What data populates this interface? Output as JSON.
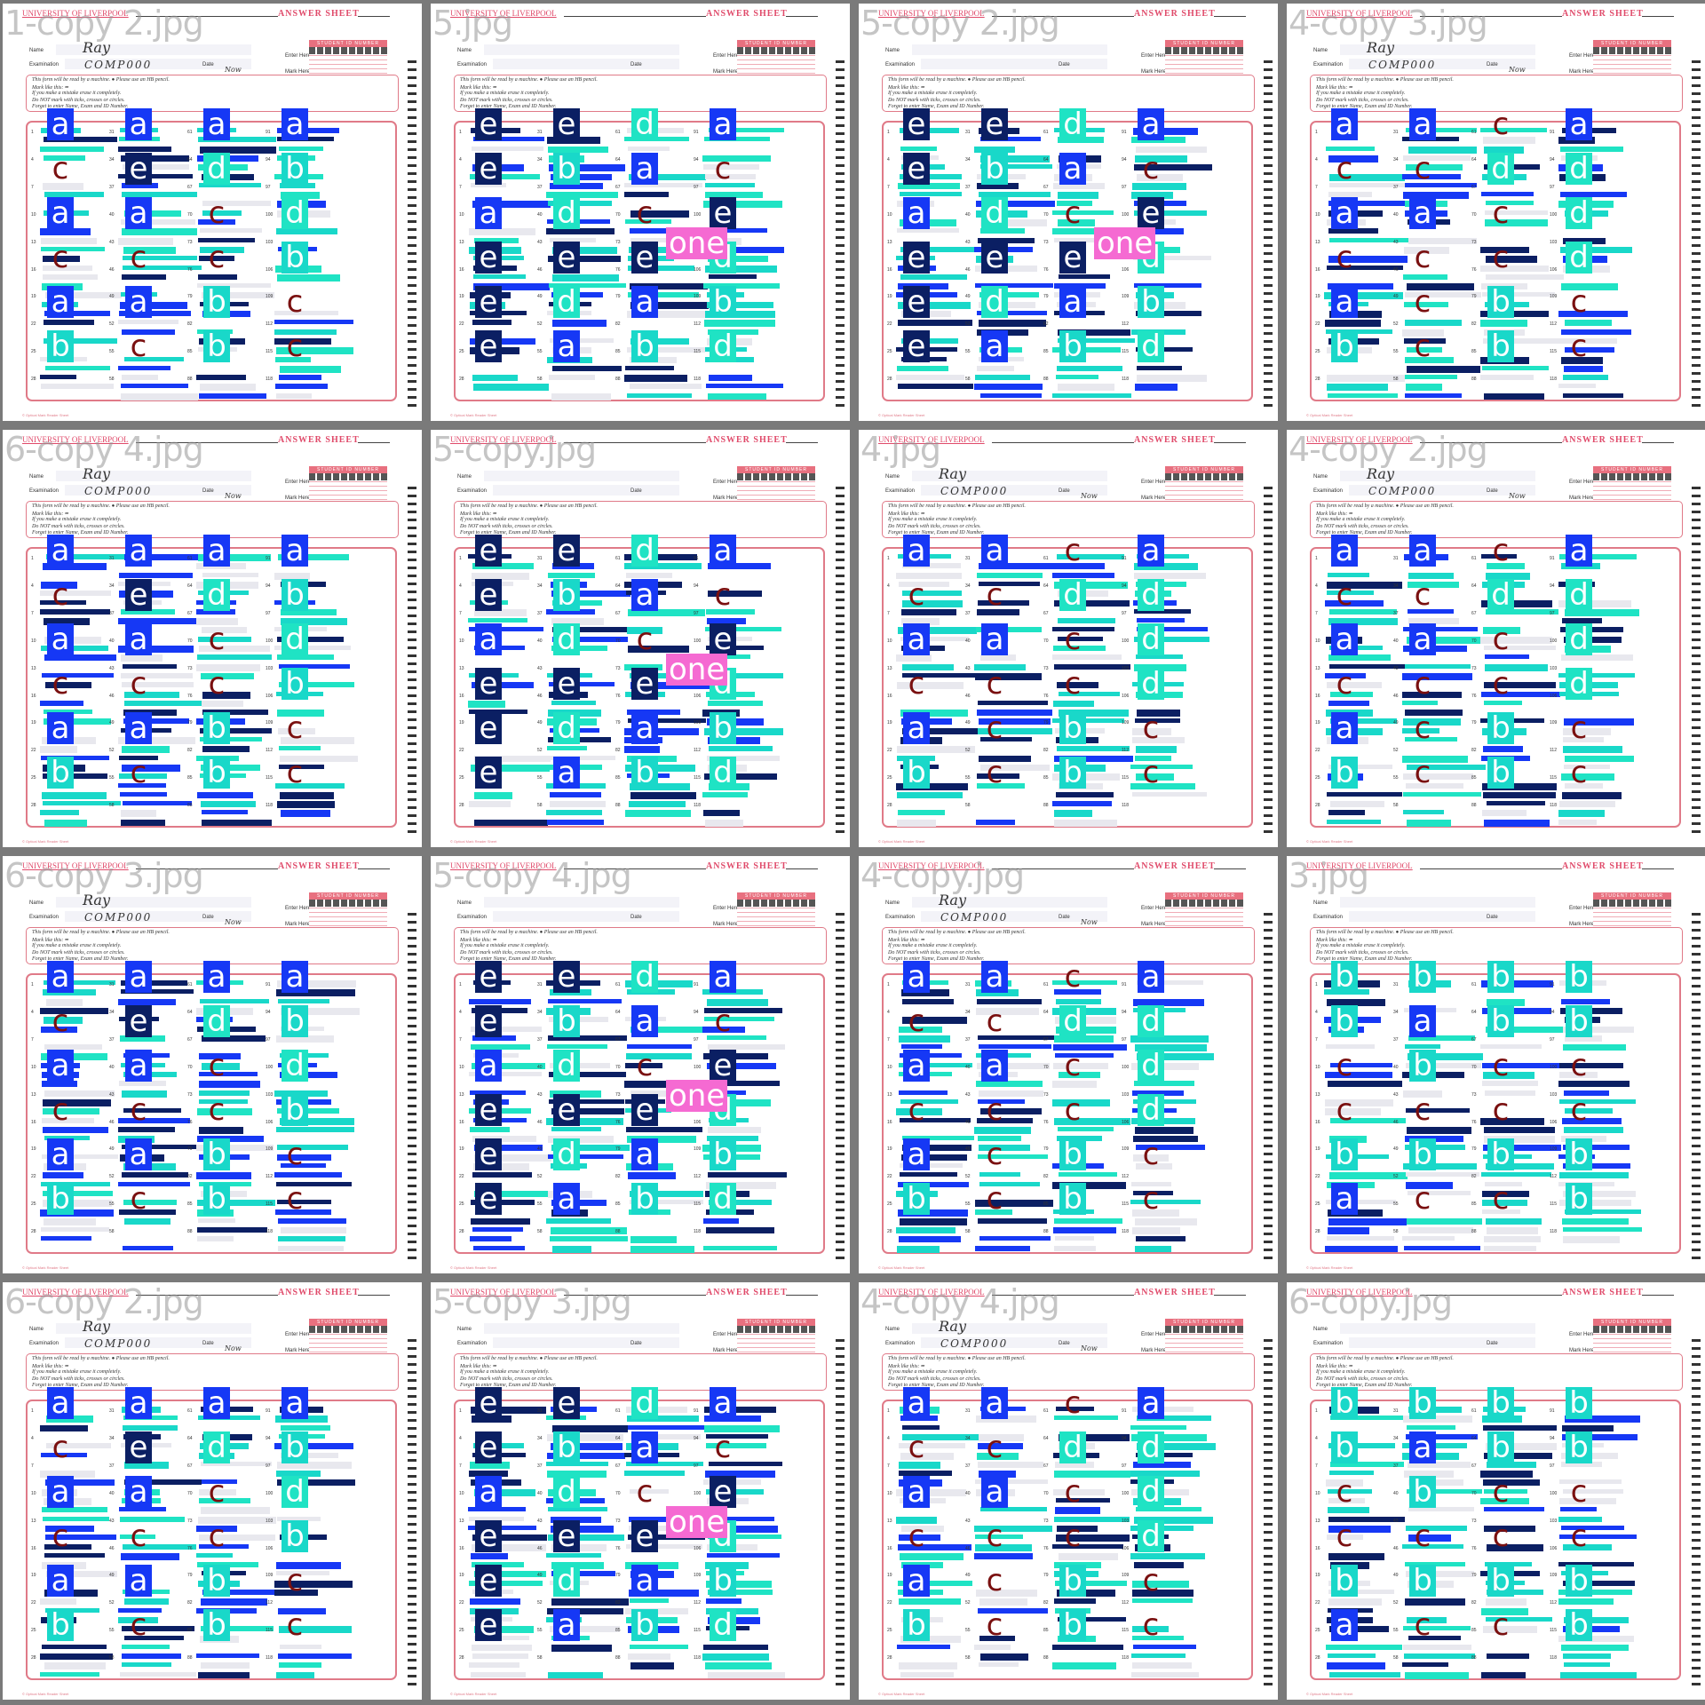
{
  "header": {
    "university": "UNIVERSITY OF LIVERPOOL",
    "title": "ANSWER SHEET",
    "name_label": "Name",
    "exam_label": "Examination",
    "date_label": "Date",
    "id_label": "STUDENT ID NUMBER",
    "enter_label": "Enter Here",
    "mark_label": "Mark Here",
    "info_lines": [
      "This form will be read by a machine.  ●  Please use an HB pencil.",
      "Mark like this:  ━",
      "If you make a mistake erase it completely.",
      "Do NOT mark with ticks, crosses or circles.",
      "Forget to enter Name, Exam and ID Number."
    ],
    "footer": "© Optical Mark Reader Sheet"
  },
  "colors": {
    "navy": "#0b1f63",
    "blue": "#1638f5",
    "cyan": "#19d8c9",
    "teal": "#1fe3c4",
    "pink": "#f56ad2",
    "sheet_red": "#e04a6a",
    "maroon": "#7a1010",
    "background": "#7a7a7a"
  },
  "tiles": [
    {
      "file": "1-copy 2.jpg",
      "variant": "A",
      "handwritten": true,
      "name": "Ray",
      "exam": "COMP000",
      "date": "Now"
    },
    {
      "file": "5.jpg",
      "variant": "B",
      "handwritten": false
    },
    {
      "file": "5-copy 2.jpg",
      "variant": "B",
      "handwritten": false
    },
    {
      "file": "4-copy 3.jpg",
      "variant": "C",
      "handwritten": true,
      "name": "Ray",
      "exam": "COMP000",
      "date": "Now"
    },
    {
      "file": "6-copy 4.jpg",
      "variant": "A",
      "handwritten": true,
      "name": "Ray",
      "exam": "COMP000",
      "date": "Now"
    },
    {
      "file": "5-copy.jpg",
      "variant": "B",
      "handwritten": false
    },
    {
      "file": "4.jpg",
      "variant": "C",
      "handwritten": true,
      "name": "Ray",
      "exam": "COMP000",
      "date": "Now"
    },
    {
      "file": "4-copy 2.jpg",
      "variant": "C",
      "handwritten": true,
      "name": "Ray",
      "exam": "COMP000",
      "date": "Now"
    },
    {
      "file": "6-copy 3.jpg",
      "variant": "A",
      "handwritten": true,
      "name": "Ray",
      "exam": "COMP000",
      "date": "Now"
    },
    {
      "file": "5-copy 4.jpg",
      "variant": "B",
      "handwritten": false
    },
    {
      "file": "4-copy.jpg",
      "variant": "C",
      "handwritten": true,
      "name": "Ray",
      "exam": "COMP000",
      "date": "Now"
    },
    {
      "file": "3.jpg",
      "variant": "D",
      "handwritten": false
    },
    {
      "file": "6-copy 2.jpg",
      "variant": "A",
      "handwritten": true,
      "name": "Ray",
      "exam": "COMP000",
      "date": "Now"
    },
    {
      "file": "5-copy 3.jpg",
      "variant": "B",
      "handwritten": false
    },
    {
      "file": "4-copy 4.jpg",
      "variant": "C",
      "handwritten": true,
      "name": "Ray",
      "exam": "COMP000",
      "date": "Now"
    },
    {
      "file": "6-copy.jpg",
      "variant": "D",
      "handwritten": false
    }
  ],
  "column_start_numbers": [
    1,
    31,
    61,
    91
  ],
  "answer_letters": {
    "A": [
      [
        "a",
        "c",
        "a",
        "c",
        "a",
        "b"
      ],
      [
        "a",
        "e",
        "a",
        "c",
        "a",
        "c"
      ],
      [
        "a",
        "d",
        "c",
        "c",
        "b",
        "b"
      ],
      [
        "a",
        "b",
        "d",
        "b",
        "c",
        "c"
      ]
    ],
    "B": [
      [
        "e",
        "e",
        "a",
        "e",
        "e",
        "e"
      ],
      [
        "e",
        "b",
        "d",
        "e",
        "d",
        "a"
      ],
      [
        "d",
        "a",
        "c",
        "e",
        "a",
        "b"
      ],
      [
        "a",
        "c",
        "e",
        "d",
        "b",
        "d"
      ]
    ],
    "C": [
      [
        "a",
        "c",
        "a",
        "c",
        "a",
        "b"
      ],
      [
        "a",
        "c",
        "a",
        "c",
        "c",
        "c"
      ],
      [
        "c",
        "d",
        "c",
        "c",
        "b",
        "b"
      ],
      [
        "a",
        "d",
        "d",
        "d",
        "c",
        "c"
      ]
    ],
    "D": [
      [
        "b",
        "b",
        "c",
        "c",
        "b",
        "a"
      ],
      [
        "b",
        "a",
        "b",
        "c",
        "b",
        "c"
      ],
      [
        "b",
        "b",
        "c",
        "c",
        "b",
        "c"
      ],
      [
        "b",
        "b",
        "c",
        "c",
        "b",
        "b"
      ]
    ]
  },
  "tag_text": "one",
  "tag_variant": "B"
}
